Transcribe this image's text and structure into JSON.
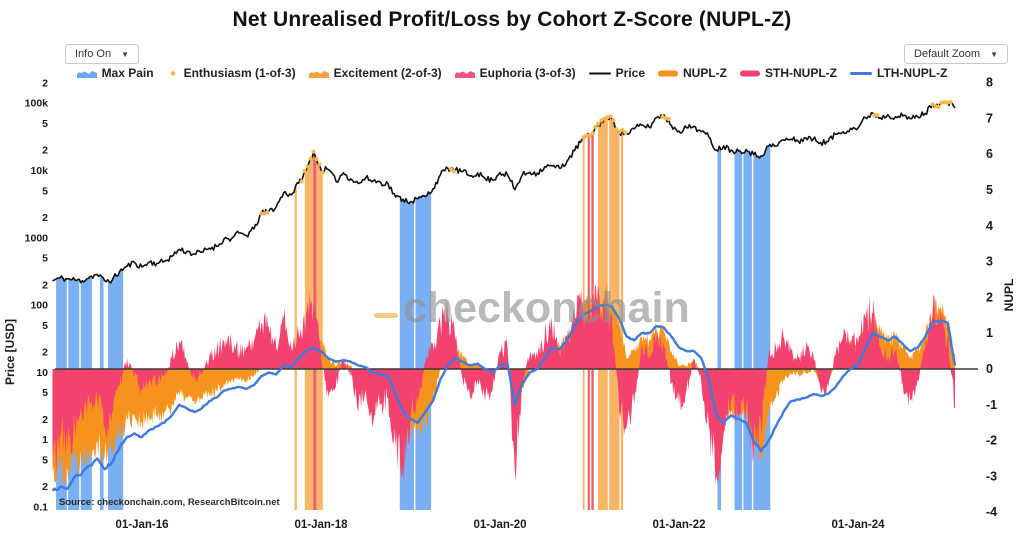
{
  "header": {
    "title": "Net Unrealised Profit/Loss by Cohort Z-Score (NUPL-Z)",
    "info_label": "Info On",
    "zoom_label": "Default Zoom",
    "arrow": "▼"
  },
  "watermark": {
    "text": "checkonchain",
    "color": "#8f8f8f",
    "dash_color": "#F9A93D"
  },
  "source": {
    "text": "Source: checkonchain.com, ResearchBitcoin.net"
  },
  "legend": {
    "items": [
      {
        "label": "Max Pain",
        "color": "#6CA6F2",
        "type": "area"
      },
      {
        "label": "Enthusiasm (1-of-3)",
        "color": "#F9B64C",
        "type": "dot"
      },
      {
        "label": "Excitement (2-of-3)",
        "color": "#F8A13F",
        "type": "area"
      },
      {
        "label": "Euphoria (3-of-3)",
        "color": "#F4537E",
        "type": "area"
      },
      {
        "label": "Price",
        "color": "#111111",
        "type": "line"
      },
      {
        "label": "NUPL-Z",
        "color": "#F6921E",
        "type": "thick"
      },
      {
        "label": "STH-NUPL-Z",
        "color": "#F4426E",
        "type": "thick"
      },
      {
        "label": "LTH-NUPL-Z",
        "color": "#3D7BE0",
        "type": "line-thick"
      }
    ]
  },
  "chart_data": {
    "type": "line",
    "title": "Net Unrealised Profit/Loss by Cohort Z-Score (NUPL-Z)",
    "x_axis": {
      "range": [
        2015.0,
        2025.2
      ],
      "ticks": [
        {
          "label": "01-Jan-16",
          "t": 2016.0
        },
        {
          "label": "01-Jan-18",
          "t": 2018.0
        },
        {
          "label": "01-Jan-20",
          "t": 2020.0
        },
        {
          "label": "01-Jan-22",
          "t": 2022.0
        },
        {
          "label": "01-Jan-24",
          "t": 2024.0
        }
      ]
    },
    "y_left": {
      "title": "Price [USD]",
      "scale": "log",
      "range": [
        0.1,
        260000
      ],
      "ticks": [
        {
          "label": "2",
          "v": 200000
        },
        {
          "label": "100k",
          "v": 100000
        },
        {
          "label": "5",
          "v": 50000
        },
        {
          "label": "2",
          "v": 20000
        },
        {
          "label": "10k",
          "v": 10000
        },
        {
          "label": "5",
          "v": 5000
        },
        {
          "label": "2",
          "v": 2000
        },
        {
          "label": "1000",
          "v": 1000
        },
        {
          "label": "5",
          "v": 500
        },
        {
          "label": "2",
          "v": 200
        },
        {
          "label": "100",
          "v": 100
        },
        {
          "label": "5",
          "v": 50
        },
        {
          "label": "2",
          "v": 20
        },
        {
          "label": "10",
          "v": 10
        },
        {
          "label": "5",
          "v": 5
        },
        {
          "label": "2",
          "v": 2
        },
        {
          "label": "1",
          "v": 1
        },
        {
          "label": "5",
          "v": 0.5
        },
        {
          "label": "2",
          "v": 0.2
        },
        {
          "label": "0.1",
          "v": 0.1
        }
      ]
    },
    "y_right": {
      "title": "NUPL",
      "range": [
        -4.2,
        8.2
      ],
      "ticks": [
        {
          "label": "8",
          "v": 8
        },
        {
          "label": "7",
          "v": 7
        },
        {
          "label": "6",
          "v": 6
        },
        {
          "label": "5",
          "v": 5
        },
        {
          "label": "4",
          "v": 4
        },
        {
          "label": "3",
          "v": 3
        },
        {
          "label": "2",
          "v": 2
        },
        {
          "label": "1",
          "v": 1
        },
        {
          "label": "0",
          "v": 0
        },
        {
          "label": "-1",
          "v": -1
        },
        {
          "label": "-2",
          "v": -2
        },
        {
          "label": "-3",
          "v": -3
        },
        {
          "label": "-4",
          "v": -4
        }
      ]
    },
    "zero_line": {
      "axis": "right",
      "value": 0,
      "color": "#3a3a3a"
    },
    "series": [
      {
        "name": "Price",
        "color": "#111111",
        "axis": "left",
        "kind": "line",
        "start": 2015.0,
        "step_years": 0.083333,
        "values": [
          230,
          254,
          244,
          236,
          230,
          263,
          284,
          230,
          236,
          314,
          377,
          430,
          368,
          437,
          416,
          448,
          531,
          673,
          624,
          575,
          610,
          701,
          745,
          963,
          970,
          1180,
          1080,
          1350,
          2300,
          2480,
          2875,
          4700,
          4360,
          6470,
          9900,
          19000,
          10200,
          10300,
          6930,
          9240,
          7490,
          6400,
          7730,
          7040,
          6630,
          6320,
          4020,
          3750,
          3440,
          3820,
          4100,
          5320,
          8570,
          10800,
          10100,
          9630,
          8290,
          9200,
          7570,
          7190,
          9350,
          8600,
          5200,
          8630,
          9450,
          9140,
          11320,
          11680,
          10780,
          13800,
          19700,
          29000,
          33100,
          45200,
          58800,
          57750,
          37300,
          35000,
          41600,
          47200,
          43800,
          61300,
          67000,
          46300,
          38500,
          43200,
          45500,
          37700,
          31800,
          20000,
          23300,
          20100,
          19400,
          20500,
          17200,
          16500,
          23100,
          23100,
          28500,
          29300,
          27200,
          30500,
          29200,
          26000,
          27000,
          34700,
          37700,
          42300,
          42600,
          61200,
          71300,
          60600,
          67500,
          62700,
          64600,
          59000,
          63300,
          70200,
          96400,
          97000,
          102000,
          85000
        ]
      },
      {
        "name": "NUPL-Z",
        "color": "#F6921E",
        "axis": "right",
        "kind": "area",
        "start": 2015.0,
        "step_years": 0.083333,
        "values": [
          -2.9,
          -2.7,
          -2.8,
          -2.5,
          -2.4,
          -2.2,
          -2.0,
          -2.4,
          -2.2,
          -1.8,
          -1.4,
          -1.3,
          -1.5,
          -1.4,
          -1.3,
          -1.2,
          -1.0,
          -0.7,
          -0.8,
          -0.9,
          -0.85,
          -0.7,
          -0.6,
          -0.4,
          -0.3,
          -0.25,
          -0.3,
          -0.2,
          0.1,
          0.3,
          0.2,
          0.5,
          0.4,
          0.6,
          0.9,
          1.2,
          0.8,
          0.3,
          0.1,
          0.2,
          0.1,
          -0.2,
          -0.1,
          -0.4,
          -0.45,
          -0.5,
          -1.1,
          -1.6,
          -1.7,
          -1.8,
          -1.4,
          -0.9,
          0.0,
          0.5,
          0.6,
          0.3,
          0.1,
          0.2,
          -0.1,
          -0.3,
          0.1,
          0.2,
          -1.6,
          -0.5,
          0.0,
          0.1,
          0.4,
          0.8,
          0.6,
          0.9,
          1.3,
          1.7,
          1.8,
          1.9,
          2.0,
          1.9,
          1.2,
          0.3,
          0.5,
          0.9,
          0.8,
          1.1,
          1.0,
          0.5,
          0.1,
          0.1,
          0.2,
          -0.1,
          -0.8,
          -1.8,
          -1.6,
          -1.2,
          -1.3,
          -1.3,
          -2.2,
          -2.4,
          -1.2,
          -0.8,
          -0.3,
          -0.1,
          -0.15,
          -0.1,
          0.0,
          -0.3,
          -0.25,
          0.1,
          0.5,
          0.7,
          0.6,
          1.1,
          1.4,
          1.0,
          0.8,
          0.9,
          0.6,
          0.3,
          0.5,
          0.9,
          1.6,
          1.7,
          1.3,
          0.4
        ]
      },
      {
        "name": "STH-NUPL-Z",
        "color": "#F4426E",
        "axis": "right",
        "kind": "area",
        "start": 2015.0,
        "step_years": 0.083333,
        "values": [
          -2.5,
          -1.9,
          -2.2,
          -1.6,
          -1.4,
          -1.0,
          -0.8,
          -1.6,
          -1.2,
          -0.5,
          0.3,
          -0.2,
          -0.6,
          -0.3,
          -0.4,
          -0.2,
          0.3,
          0.8,
          0.2,
          -0.3,
          -0.1,
          0.3,
          0.5,
          0.8,
          0.7,
          0.5,
          0.6,
          0.8,
          1.3,
          1.2,
          0.6,
          1.4,
          0.6,
          1.0,
          1.5,
          1.8,
          0.4,
          -0.8,
          -0.5,
          0.3,
          -0.2,
          -1.2,
          -0.6,
          -1.5,
          -1.0,
          -0.8,
          -2.2,
          -2.7,
          -1.3,
          -0.9,
          0.2,
          0.7,
          1.3,
          1.5,
          0.8,
          -0.3,
          -0.8,
          -0.3,
          -0.9,
          -0.6,
          0.5,
          0.6,
          -2.9,
          -0.3,
          0.4,
          0.3,
          0.9,
          1.2,
          0.4,
          0.9,
          1.5,
          1.7,
          1.6,
          1.8,
          1.7,
          1.5,
          -1.2,
          -1.6,
          -1.0,
          0.7,
          0.4,
          0.9,
          0.6,
          -0.4,
          -1.0,
          -0.6,
          0.3,
          -0.4,
          -1.6,
          -3.0,
          -1.8,
          -0.9,
          -1.3,
          -1.1,
          -2.4,
          -1.6,
          0.4,
          0.6,
          0.9,
          0.5,
          0.3,
          0.6,
          0.4,
          -0.6,
          -0.5,
          0.4,
          0.9,
          0.8,
          0.7,
          1.4,
          1.6,
          0.6,
          0.3,
          0.5,
          -0.4,
          -0.9,
          -0.3,
          0.6,
          1.6,
          1.4,
          0.9,
          -1.1
        ]
      },
      {
        "name": "LTH-NUPL-Z",
        "color": "#3D7BE0",
        "axis": "right",
        "kind": "line",
        "start": 2015.0,
        "step_years": 0.083333,
        "values": [
          -3.4,
          -3.3,
          -3.35,
          -3.0,
          -2.9,
          -2.7,
          -2.5,
          -2.8,
          -2.6,
          -2.2,
          -1.9,
          -1.8,
          -1.9,
          -1.7,
          -1.6,
          -1.5,
          -1.3,
          -1.0,
          -1.1,
          -1.2,
          -1.1,
          -0.9,
          -0.8,
          -0.6,
          -0.55,
          -0.5,
          -0.55,
          -0.45,
          -0.2,
          -0.1,
          -0.15,
          0.1,
          0.05,
          0.3,
          0.5,
          0.6,
          0.5,
          0.3,
          0.2,
          0.25,
          0.2,
          0.1,
          0.05,
          -0.1,
          -0.15,
          -0.2,
          -0.7,
          -1.2,
          -1.4,
          -1.5,
          -1.2,
          -0.9,
          -0.3,
          0.1,
          0.3,
          0.2,
          0.1,
          0.15,
          0.0,
          -0.1,
          0.1,
          0.15,
          -1.0,
          -0.4,
          -0.1,
          0.0,
          0.3,
          0.6,
          0.55,
          0.8,
          1.2,
          1.5,
          1.6,
          1.75,
          1.8,
          1.75,
          1.4,
          0.9,
          0.8,
          1.0,
          1.0,
          1.2,
          1.15,
          0.9,
          0.6,
          0.5,
          0.5,
          0.3,
          -0.3,
          -1.3,
          -1.5,
          -1.3,
          -1.4,
          -1.5,
          -2.0,
          -2.3,
          -2.0,
          -1.6,
          -1.2,
          -0.9,
          -0.85,
          -0.8,
          -0.7,
          -0.75,
          -0.7,
          -0.5,
          -0.2,
          0.0,
          0.1,
          0.6,
          1.0,
          0.9,
          0.8,
          0.9,
          0.7,
          0.5,
          0.6,
          0.9,
          1.3,
          1.35,
          1.3,
          0.1
        ]
      }
    ],
    "bands": {
      "max_pain": {
        "color": "#6CA6F2",
        "opacity": 0.9,
        "ranges": [
          [
            2015.04,
            2015.16
          ],
          [
            2015.175,
            2015.3
          ],
          [
            2015.315,
            2015.44
          ],
          [
            2015.53,
            2015.57
          ],
          [
            2015.62,
            2015.79
          ],
          [
            2018.88,
            2019.04
          ],
          [
            2019.055,
            2019.23
          ],
          [
            2022.43,
            2022.47
          ],
          [
            2022.62,
            2022.705
          ],
          [
            2022.72,
            2022.815
          ],
          [
            2022.83,
            2023.02
          ]
        ]
      },
      "excitement": {
        "color": "#F8A13F",
        "opacity": 0.8,
        "ranges": [
          [
            2017.705,
            2017.73
          ],
          [
            2017.82,
            2017.91
          ],
          [
            2017.952,
            2018.02
          ],
          [
            2020.925,
            2020.945
          ],
          [
            2021.095,
            2021.205
          ],
          [
            2021.22,
            2021.335
          ],
          [
            2021.35,
            2021.375
          ]
        ]
      },
      "euphoria": {
        "color": "#ED4F5B",
        "opacity": 0.9,
        "ranges": [
          [
            2017.912,
            2017.95
          ],
          [
            2020.98,
            2021.005
          ],
          [
            2021.02,
            2021.048
          ]
        ]
      }
    },
    "enthusiasm_markers": {
      "color": "#F9B64C",
      "ranges": [
        [
          2017.32,
          2017.42
        ],
        [
          2017.78,
          2018.04
        ],
        [
          2019.44,
          2019.5
        ],
        [
          2020.92,
          2021.42
        ],
        [
          2021.8,
          2021.9
        ],
        [
          2024.17,
          2024.24
        ],
        [
          2024.82,
          2025.06
        ]
      ]
    },
    "style": {
      "sub_steps": {
        "price": 5,
        "area": 8,
        "line": 4
      },
      "jitter": {
        "price": 0.09,
        "sth": 1.6,
        "nupl": 1.0,
        "lth": 0.07
      }
    }
  }
}
